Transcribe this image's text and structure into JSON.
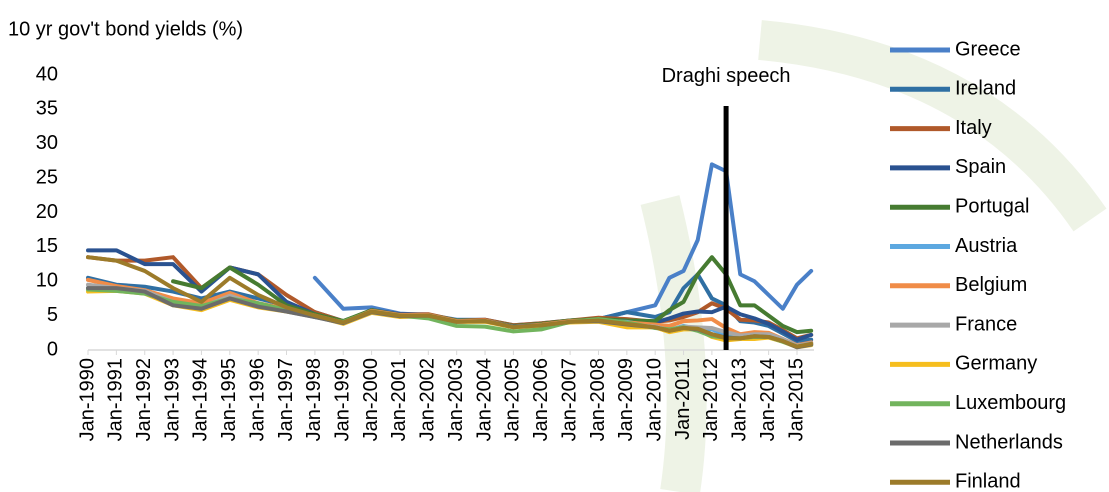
{
  "chart_data": {
    "type": "line",
    "title": "10 yr gov't bond yields (%)",
    "x": [
      1990,
      1991,
      1992,
      1993,
      1994,
      1995,
      1996,
      1997,
      1998,
      1999,
      2000,
      2001,
      2002,
      2003,
      2004,
      2005,
      2006,
      2007,
      2008,
      2009,
      2010,
      2010.5,
      2011,
      2011.5,
      2012,
      2012.5,
      2013,
      2013.5,
      2014,
      2014.5,
      2015,
      2015.5
    ],
    "xlim": [
      1990,
      2015.6
    ],
    "xticks": [
      {
        "value": 1990,
        "label": "Jan-1990"
      },
      {
        "value": 1991,
        "label": "Jan-1991"
      },
      {
        "value": 1992,
        "label": "Jan-1992"
      },
      {
        "value": 1993,
        "label": "Jan-1993"
      },
      {
        "value": 1994,
        "label": "Jan-1994"
      },
      {
        "value": 1995,
        "label": "Jan-1995"
      },
      {
        "value": 1996,
        "label": "Jan-1996"
      },
      {
        "value": 1997,
        "label": "Jan-1997"
      },
      {
        "value": 1998,
        "label": "Jan-1998"
      },
      {
        "value": 1999,
        "label": "Jan-1999"
      },
      {
        "value": 2000,
        "label": "Jan-2000"
      },
      {
        "value": 2001,
        "label": "Jan-2001"
      },
      {
        "value": 2002,
        "label": "Jan-2002"
      },
      {
        "value": 2003,
        "label": "Jan-2003"
      },
      {
        "value": 2004,
        "label": "Jan-2004"
      },
      {
        "value": 2005,
        "label": "Jan-2005"
      },
      {
        "value": 2006,
        "label": "Jan-2006"
      },
      {
        "value": 2007,
        "label": "Jan-2007"
      },
      {
        "value": 2008,
        "label": "Jan-2008"
      },
      {
        "value": 2009,
        "label": "Jan-2009"
      },
      {
        "value": 2010,
        "label": "Jan-2010"
      },
      {
        "value": 2011,
        "label": "Jan-2011"
      },
      {
        "value": 2012,
        "label": "Jan-2012"
      },
      {
        "value": 2013,
        "label": "Jan-2013"
      },
      {
        "value": 2014,
        "label": "Jan-2014"
      },
      {
        "value": 2015,
        "label": "Jan-2015"
      }
    ],
    "ylim": [
      0,
      40
    ],
    "yticks": [
      0,
      5,
      10,
      15,
      20,
      25,
      30,
      35,
      40
    ],
    "annotations": [
      {
        "text": "Draghi speech",
        "x": 2012.5,
        "y": [
          0,
          35.5
        ]
      }
    ],
    "series": [
      {
        "name": "Greece",
        "color": "#4a80c8",
        "values": [
          null,
          null,
          null,
          null,
          null,
          null,
          null,
          null,
          10.5,
          6,
          6.2,
          5.3,
          5.1,
          4.4,
          4.4,
          3.6,
          3.9,
          4.3,
          4.5,
          5.5,
          6.5,
          10.5,
          11.5,
          16,
          27,
          26,
          11,
          10,
          8,
          6,
          9.5,
          11.5
        ]
      },
      {
        "name": "Ireland",
        "color": "#2f6fa3",
        "values": [
          10.5,
          9.5,
          9.2,
          8.5,
          7.5,
          8.5,
          7.5,
          6.5,
          5.5,
          4.2,
          5.7,
          5.0,
          5.1,
          4.2,
          4.3,
          3.5,
          3.7,
          4.2,
          4.5,
          5.5,
          4.8,
          5.5,
          9,
          11,
          7.5,
          6.5,
          4.2,
          4,
          3.5,
          2.4,
          1.3,
          1.5
        ]
      },
      {
        "name": "Italy",
        "color": "#b0592a",
        "values": [
          13.5,
          13,
          13,
          13.5,
          9,
          12,
          11,
          8,
          5.5,
          4.2,
          5.7,
          5.2,
          5.2,
          4.3,
          4.4,
          3.6,
          3.9,
          4.3,
          4.7,
          4.5,
          4.1,
          4.3,
          4.8,
          5.5,
          6.8,
          6.0,
          4.4,
          4.3,
          4.0,
          2.9,
          1.7,
          2.2
        ]
      },
      {
        "name": "Spain",
        "color": "#2a5290",
        "values": [
          14.5,
          14.5,
          12.5,
          12.5,
          8.5,
          12,
          11,
          7,
          5.2,
          4.1,
          5.8,
          5.2,
          5.1,
          4.2,
          4.3,
          3.4,
          3.7,
          4.2,
          4.4,
          4.0,
          4.0,
          4.6,
          5.3,
          5.6,
          5.5,
          6.3,
          5.2,
          4.6,
          3.8,
          2.7,
          1.5,
          2.2
        ]
      },
      {
        "name": "Portugal",
        "color": "#467b31",
        "values": [
          null,
          null,
          null,
          10,
          9,
          12,
          9.5,
          6.5,
          5.2,
          4.2,
          5.8,
          5.1,
          5.1,
          4.3,
          4.3,
          3.5,
          3.8,
          4.3,
          4.5,
          4.3,
          4.2,
          5.8,
          7,
          11,
          13.5,
          11,
          6.5,
          6.5,
          5,
          3.5,
          2.6,
          2.8
        ]
      },
      {
        "name": "Austria",
        "color": "#5ca8e0",
        "values": [
          9,
          8.7,
          8.3,
          7,
          6,
          7.6,
          6.5,
          5.8,
          4.9,
          4.0,
          5.6,
          5.0,
          5.0,
          4.1,
          4.2,
          3.3,
          3.6,
          4.1,
          4.3,
          4.1,
          3.4,
          2.9,
          3.5,
          3.0,
          3.0,
          2.2,
          2.0,
          2.1,
          2.0,
          1.4,
          0.6,
          1.0
        ]
      },
      {
        "name": "Belgium",
        "color": "#f08c48",
        "values": [
          10.2,
          9.3,
          8.7,
          7.5,
          6.8,
          8.3,
          6.8,
          6,
          5.0,
          4.0,
          5.7,
          5.1,
          5.1,
          4.2,
          4.3,
          3.4,
          3.7,
          4.2,
          4.4,
          4.0,
          3.7,
          3.5,
          4.2,
          4.3,
          4.5,
          3.2,
          2.3,
          2.6,
          2.5,
          1.6,
          0.7,
          1.1
        ]
      },
      {
        "name": "France",
        "color": "#a8a8a8",
        "values": [
          9.5,
          9,
          8.6,
          7,
          6.2,
          7.9,
          6.5,
          5.6,
          4.8,
          4.0,
          5.6,
          5.0,
          5.0,
          4.1,
          4.2,
          3.4,
          3.6,
          4.1,
          4.3,
          3.7,
          3.4,
          2.9,
          3.4,
          3.3,
          3.2,
          2.6,
          2.1,
          2.3,
          2.3,
          1.6,
          0.6,
          1.0
        ]
      },
      {
        "name": "Germany",
        "color": "#f6be1e",
        "values": [
          8.5,
          8.6,
          8.2,
          6.5,
          5.8,
          7.3,
          6.2,
          5.6,
          4.9,
          3.8,
          5.4,
          4.8,
          4.9,
          4.1,
          4.1,
          3.3,
          3.5,
          4.0,
          4.1,
          3.3,
          3.3,
          2.6,
          3.0,
          3.0,
          1.9,
          1.4,
          1.6,
          1.6,
          1.8,
          1.2,
          0.4,
          0.7
        ]
      },
      {
        "name": "Luxembourg",
        "color": "#72b45d",
        "values": [
          8.8,
          8.6,
          8.2,
          7,
          6.4,
          7.5,
          6.8,
          5.8,
          4.8,
          4.1,
          5.6,
          5.0,
          4.6,
          3.5,
          3.4,
          2.7,
          3.0,
          4.1,
          4.5,
          4.0,
          3.2,
          3.0,
          3.3,
          2.8,
          2.0,
          1.8,
          1.7,
          1.9,
          1.9,
          1.2,
          0.5,
          0.8
        ]
      },
      {
        "name": "Netherlands",
        "color": "#6b6b6b",
        "values": [
          9,
          9,
          8.5,
          6.5,
          6.0,
          7.5,
          6.3,
          5.6,
          4.8,
          3.9,
          5.5,
          4.9,
          5.0,
          4.1,
          4.2,
          3.4,
          3.6,
          4.1,
          4.2,
          3.7,
          3.3,
          2.8,
          3.2,
          3.0,
          2.3,
          1.8,
          1.7,
          2.0,
          1.9,
          1.3,
          0.4,
          0.8
        ]
      },
      {
        "name": "Finland",
        "color": "#9c7b2a",
        "values": [
          13.5,
          13,
          11.5,
          9,
          7,
          10.5,
          8,
          6.2,
          5.0,
          4.0,
          5.6,
          5.0,
          5.0,
          4.1,
          4.2,
          3.3,
          3.6,
          4.1,
          4.3,
          3.8,
          3.3,
          2.8,
          3.2,
          3.1,
          2.3,
          1.7,
          1.7,
          2.0,
          1.9,
          1.3,
          0.5,
          0.9
        ]
      }
    ]
  }
}
